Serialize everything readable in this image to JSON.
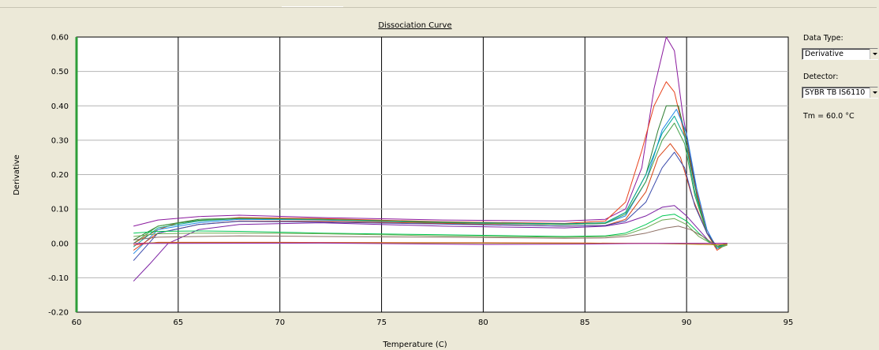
{
  "chart_data": {
    "type": "line",
    "title": "Dissociation Curve",
    "xlabel": "Temperature (C)",
    "ylabel": "Derivative",
    "xlim": [
      60,
      95
    ],
    "ylim": [
      -0.2,
      0.6
    ],
    "x_ticks": [
      "60",
      "65",
      "70",
      "75",
      "80",
      "85",
      "90",
      "95"
    ],
    "y_ticks": [
      "-0.20",
      "-0.10",
      "0.00",
      "0.10",
      "0.20",
      "0.30",
      "0.40",
      "0.50",
      "0.60"
    ],
    "grid": true,
    "series": [
      {
        "color": "#8b1a9e",
        "values": [
          [
            62.8,
            0.05
          ],
          [
            64,
            0.068
          ],
          [
            66,
            0.078
          ],
          [
            68,
            0.082
          ],
          [
            72,
            0.075
          ],
          [
            78,
            0.068
          ],
          [
            84,
            0.065
          ],
          [
            86,
            0.07
          ],
          [
            87,
            0.1
          ],
          [
            87.8,
            0.22
          ],
          [
            88.4,
            0.45
          ],
          [
            89,
            0.6
          ],
          [
            89.4,
            0.56
          ],
          [
            89.8,
            0.38
          ],
          [
            90.4,
            0.18
          ],
          [
            91,
            0.04
          ],
          [
            91.4,
            -0.01
          ],
          [
            92,
            0.0
          ]
        ]
      },
      {
        "color": "#e8401a",
        "values": [
          [
            62.8,
            0.0
          ],
          [
            64,
            0.04
          ],
          [
            65,
            0.06
          ],
          [
            68,
            0.075
          ],
          [
            72,
            0.072
          ],
          [
            78,
            0.063
          ],
          [
            84,
            0.058
          ],
          [
            86,
            0.065
          ],
          [
            87,
            0.12
          ],
          [
            87.8,
            0.27
          ],
          [
            88.4,
            0.4
          ],
          [
            89,
            0.47
          ],
          [
            89.4,
            0.44
          ],
          [
            89.8,
            0.34
          ],
          [
            90.4,
            0.17
          ],
          [
            91,
            0.03
          ],
          [
            91.5,
            -0.02
          ],
          [
            92,
            0.0
          ]
        ]
      },
      {
        "color": "#2e7d32",
        "values": [
          [
            62.8,
            0.01
          ],
          [
            64,
            0.05
          ],
          [
            66,
            0.07
          ],
          [
            68,
            0.073
          ],
          [
            72,
            0.07
          ],
          [
            78,
            0.062
          ],
          [
            84,
            0.056
          ],
          [
            86,
            0.06
          ],
          [
            87,
            0.09
          ],
          [
            88,
            0.2
          ],
          [
            88.6,
            0.33
          ],
          [
            89,
            0.4
          ],
          [
            89.6,
            0.4
          ],
          [
            90,
            0.3
          ],
          [
            90.5,
            0.14
          ],
          [
            91,
            0.03
          ],
          [
            91.5,
            -0.015
          ],
          [
            92,
            -0.005
          ]
        ]
      },
      {
        "color": "#1e88e5",
        "values": [
          [
            62.8,
            -0.03
          ],
          [
            64,
            0.04
          ],
          [
            66,
            0.06
          ],
          [
            68,
            0.07
          ],
          [
            72,
            0.068
          ],
          [
            78,
            0.06
          ],
          [
            84,
            0.055
          ],
          [
            86,
            0.058
          ],
          [
            87,
            0.08
          ],
          [
            88,
            0.18
          ],
          [
            88.8,
            0.33
          ],
          [
            89.5,
            0.39
          ],
          [
            90,
            0.32
          ],
          [
            90.5,
            0.16
          ],
          [
            91,
            0.04
          ],
          [
            91.5,
            -0.015
          ],
          [
            92,
            0.0
          ]
        ]
      },
      {
        "color": "#00a896",
        "values": [
          [
            62.8,
            -0.01
          ],
          [
            64,
            0.045
          ],
          [
            66,
            0.065
          ],
          [
            68,
            0.072
          ],
          [
            72,
            0.069
          ],
          [
            78,
            0.061
          ],
          [
            84,
            0.057
          ],
          [
            86,
            0.06
          ],
          [
            87,
            0.09
          ],
          [
            88,
            0.2
          ],
          [
            88.8,
            0.32
          ],
          [
            89.4,
            0.37
          ],
          [
            89.9,
            0.31
          ],
          [
            90.4,
            0.15
          ],
          [
            91,
            0.03
          ],
          [
            91.5,
            -0.01
          ],
          [
            92,
            0.0
          ]
        ]
      },
      {
        "color": "#43a047",
        "values": [
          [
            62.8,
            0.0
          ],
          [
            64,
            0.05
          ],
          [
            66,
            0.067
          ],
          [
            68,
            0.072
          ],
          [
            72,
            0.07
          ],
          [
            78,
            0.06
          ],
          [
            84,
            0.055
          ],
          [
            86,
            0.058
          ],
          [
            87,
            0.085
          ],
          [
            88,
            0.18
          ],
          [
            88.8,
            0.3
          ],
          [
            89.4,
            0.35
          ],
          [
            89.9,
            0.29
          ],
          [
            90.4,
            0.14
          ],
          [
            91,
            0.03
          ],
          [
            91.5,
            -0.01
          ],
          [
            92,
            0.0
          ]
        ]
      },
      {
        "color": "#d84315",
        "values": [
          [
            62.8,
            -0.02
          ],
          [
            64,
            0.03
          ],
          [
            66,
            0.055
          ],
          [
            68,
            0.065
          ],
          [
            72,
            0.064
          ],
          [
            78,
            0.058
          ],
          [
            84,
            0.05
          ],
          [
            86,
            0.052
          ],
          [
            87,
            0.07
          ],
          [
            88,
            0.15
          ],
          [
            88.6,
            0.25
          ],
          [
            89.2,
            0.29
          ],
          [
            89.7,
            0.25
          ],
          [
            90.3,
            0.13
          ],
          [
            91,
            0.03
          ],
          [
            91.5,
            -0.01
          ],
          [
            92,
            0.0
          ]
        ]
      },
      {
        "color": "#3949ab",
        "values": [
          [
            62.8,
            -0.05
          ],
          [
            64,
            0.03
          ],
          [
            66,
            0.055
          ],
          [
            68,
            0.064
          ],
          [
            72,
            0.062
          ],
          [
            78,
            0.056
          ],
          [
            84,
            0.05
          ],
          [
            86,
            0.052
          ],
          [
            87,
            0.065
          ],
          [
            88,
            0.12
          ],
          [
            88.8,
            0.22
          ],
          [
            89.4,
            0.265
          ],
          [
            89.9,
            0.22
          ],
          [
            90.4,
            0.11
          ],
          [
            91,
            0.03
          ],
          [
            91.5,
            -0.01
          ],
          [
            92,
            0.0
          ]
        ]
      },
      {
        "color": "#7b1fa2",
        "values": [
          [
            62.8,
            -0.11
          ],
          [
            63.6,
            -0.06
          ],
          [
            64.5,
            0.0
          ],
          [
            66,
            0.04
          ],
          [
            68,
            0.055
          ],
          [
            72,
            0.06
          ],
          [
            78,
            0.05
          ],
          [
            84,
            0.045
          ],
          [
            86,
            0.05
          ],
          [
            87,
            0.06
          ],
          [
            88,
            0.08
          ],
          [
            88.8,
            0.105
          ],
          [
            89.4,
            0.11
          ],
          [
            90,
            0.08
          ],
          [
            90.6,
            0.04
          ],
          [
            91.2,
            0.0
          ],
          [
            91.6,
            -0.01
          ],
          [
            92,
            0.0
          ]
        ]
      },
      {
        "color": "#00c853",
        "values": [
          [
            62.8,
            0.03
          ],
          [
            64,
            0.035
          ],
          [
            66,
            0.036
          ],
          [
            68,
            0.035
          ],
          [
            72,
            0.03
          ],
          [
            78,
            0.025
          ],
          [
            84,
            0.02
          ],
          [
            86,
            0.022
          ],
          [
            87,
            0.03
          ],
          [
            88,
            0.055
          ],
          [
            88.8,
            0.08
          ],
          [
            89.4,
            0.085
          ],
          [
            90,
            0.065
          ],
          [
            90.6,
            0.03
          ],
          [
            91.2,
            0.0
          ],
          [
            91.6,
            -0.01
          ],
          [
            92,
            0.0
          ]
        ]
      },
      {
        "color": "#6aa84f",
        "values": [
          [
            62.8,
            0.02
          ],
          [
            64,
            0.028
          ],
          [
            66,
            0.03
          ],
          [
            68,
            0.03
          ],
          [
            72,
            0.028
          ],
          [
            78,
            0.022
          ],
          [
            84,
            0.018
          ],
          [
            86,
            0.02
          ],
          [
            87,
            0.025
          ],
          [
            88,
            0.045
          ],
          [
            88.8,
            0.068
          ],
          [
            89.4,
            0.072
          ],
          [
            90,
            0.055
          ],
          [
            90.6,
            0.02
          ],
          [
            91.2,
            0.0
          ],
          [
            91.6,
            -0.012
          ],
          [
            92,
            -0.005
          ]
        ]
      },
      {
        "color": "#8d6e63",
        "values": [
          [
            62.8,
            0.01
          ],
          [
            64,
            0.018
          ],
          [
            66,
            0.02
          ],
          [
            68,
            0.022
          ],
          [
            72,
            0.02
          ],
          [
            78,
            0.018
          ],
          [
            84,
            0.015
          ],
          [
            86,
            0.016
          ],
          [
            87,
            0.02
          ],
          [
            88,
            0.03
          ],
          [
            89,
            0.045
          ],
          [
            89.6,
            0.05
          ],
          [
            90.2,
            0.04
          ],
          [
            90.8,
            0.02
          ],
          [
            91.3,
            0.0
          ],
          [
            92,
            0.0
          ]
        ]
      },
      {
        "color": "#e53935",
        "values": [
          [
            62.8,
            -0.005
          ],
          [
            64,
            0.003
          ],
          [
            70,
            0.003
          ],
          [
            80,
            0.002
          ],
          [
            85,
            0.001
          ],
          [
            88,
            0.0
          ],
          [
            90,
            0.0
          ],
          [
            92,
            0.0
          ]
        ]
      },
      {
        "color": "#b8860b",
        "values": [
          [
            62.8,
            0.0
          ],
          [
            64,
            0.002
          ],
          [
            70,
            0.002
          ],
          [
            80,
            0.001
          ],
          [
            85,
            0.0
          ],
          [
            88,
            0.0
          ],
          [
            90,
            -0.002
          ],
          [
            91.5,
            -0.004
          ],
          [
            92,
            -0.003
          ]
        ]
      },
      {
        "color": "#9c27b0",
        "values": [
          [
            62.8,
            0.0
          ],
          [
            64,
            0.0
          ],
          [
            72,
            0.001
          ],
          [
            80,
            -0.003
          ],
          [
            85,
            -0.002
          ],
          [
            88,
            0.0
          ],
          [
            90,
            0.0
          ],
          [
            92,
            0.0
          ]
        ]
      }
    ]
  },
  "panel": {
    "data_type_label": "Data Type:",
    "data_type_value": "Derivative",
    "detector_label": "Detector:",
    "detector_value": "SYBR TB IS6110",
    "tm_text": "Tm = 60.0 °C"
  }
}
